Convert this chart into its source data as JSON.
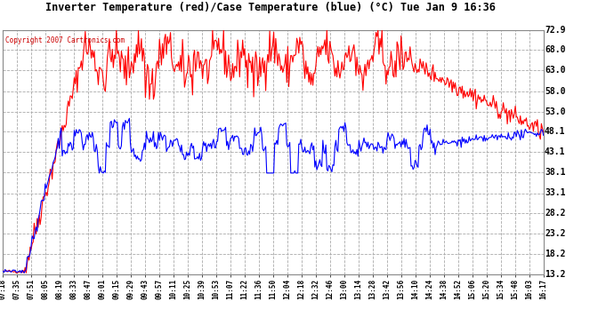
{
  "title": "Inverter Temperature (red)/Case Temperature (blue) (°C) Tue Jan 9 16:36",
  "copyright": "Copyright 2007 Cartronics.com",
  "y_ticks": [
    13.2,
    18.2,
    23.2,
    28.2,
    33.1,
    38.1,
    43.1,
    48.1,
    53.0,
    58.0,
    63.0,
    68.0,
    72.9
  ],
  "y_min": 13.2,
  "y_max": 72.9,
  "x_labels": [
    "07:18",
    "07:35",
    "07:51",
    "08:05",
    "08:19",
    "08:33",
    "08:47",
    "09:01",
    "09:15",
    "09:29",
    "09:43",
    "09:57",
    "10:11",
    "10:25",
    "10:39",
    "10:53",
    "11:07",
    "11:22",
    "11:36",
    "11:50",
    "12:04",
    "12:18",
    "12:32",
    "12:46",
    "13:00",
    "13:14",
    "13:28",
    "13:42",
    "13:56",
    "14:10",
    "14:24",
    "14:38",
    "14:52",
    "15:06",
    "15:20",
    "15:34",
    "15:48",
    "16:03",
    "16:17"
  ],
  "bg_color": "#ffffff",
  "plot_bg": "#ffffff",
  "grid_color": "#aaaaaa",
  "red_color": "#ff0000",
  "blue_color": "#0000ff",
  "title_color": "#000000",
  "copyright_color": "#cc0000"
}
